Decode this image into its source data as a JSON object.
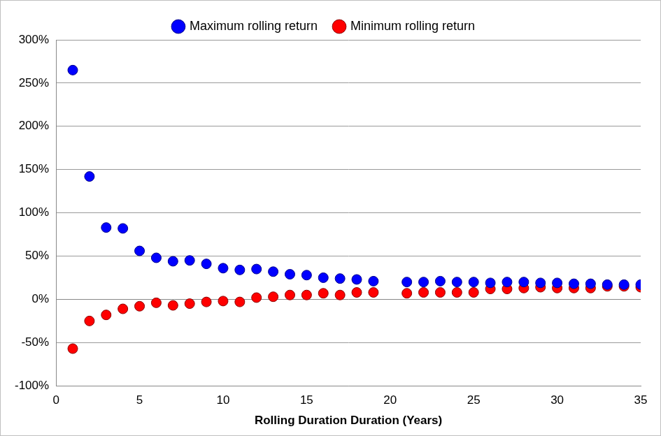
{
  "chart_data": {
    "type": "scatter",
    "x_label": "Rolling Duration Duration (Years)",
    "x": [
      1,
      2,
      3,
      4,
      5,
      6,
      7,
      8,
      9,
      10,
      11,
      12,
      13,
      14,
      15,
      16,
      17,
      18,
      19,
      21,
      22,
      23,
      24,
      25,
      26,
      27,
      28,
      29,
      30,
      31,
      32,
      33,
      34,
      35
    ],
    "series": [
      {
        "name": "Maximum rolling return",
        "color": "#0000ff",
        "marker": "circle",
        "values": [
          265,
          142,
          83,
          82,
          56,
          48,
          44,
          45,
          41,
          36,
          34,
          35,
          32,
          29,
          28,
          25,
          24,
          23,
          21,
          20,
          20,
          21,
          20,
          20,
          19,
          20,
          20,
          19,
          19,
          18,
          18,
          17,
          17,
          17
        ]
      },
      {
        "name": "Minimum rolling return",
        "color": "#ff0000",
        "marker": "circle",
        "values": [
          -57,
          -25,
          -18,
          -11,
          -8,
          -4,
          -7,
          -5,
          -3,
          -2,
          -3,
          2,
          3,
          5,
          5,
          7,
          5,
          8,
          8,
          7,
          8,
          8,
          8,
          8,
          12,
          12,
          13,
          14,
          13,
          13,
          13,
          15,
          15,
          14
        ]
      }
    ],
    "xlim": [
      0,
      35
    ],
    "xticks": [
      0,
      5,
      10,
      15,
      20,
      25,
      30,
      35
    ],
    "ylim": [
      -100,
      300
    ],
    "yticks": [
      {
        "value": -100,
        "label": "-100%"
      },
      {
        "value": -50,
        "label": "-50%"
      },
      {
        "value": 0,
        "label": "0%"
      },
      {
        "value": 50,
        "label": "50%"
      },
      {
        "value": 100,
        "label": "100%"
      },
      {
        "value": 150,
        "label": "150%"
      },
      {
        "value": 200,
        "label": "200%"
      },
      {
        "value": 250,
        "label": "250%"
      },
      {
        "value": 300,
        "label": "300%"
      }
    ],
    "grid": true,
    "legend": "top"
  }
}
